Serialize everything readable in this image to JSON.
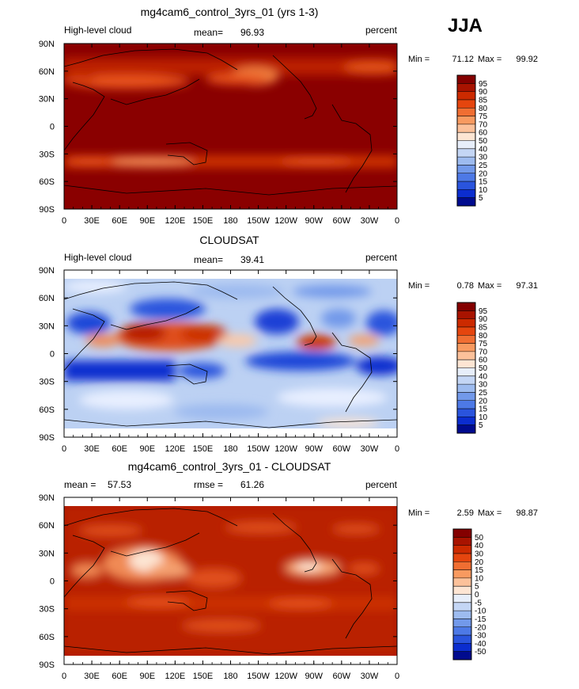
{
  "season": "JJA",
  "chart_data": [
    {
      "type": "heatmap",
      "title": "mg4cam6_control_3yrs_01 (yrs 1-3)",
      "left_label": "High-level cloud",
      "stat_label": "mean=",
      "stat_value": "96.93",
      "units": "percent",
      "min_label": "Min =",
      "min_value": "71.12",
      "max_label": "Max =",
      "max_value": "99.92",
      "legend_levels": [
        "95",
        "90",
        "85",
        "80",
        "75",
        "70",
        "60",
        "50",
        "40",
        "30",
        "25",
        "20",
        "15",
        "10",
        "5"
      ],
      "xlabels": [
        "0",
        "30E",
        "60E",
        "90E",
        "120E",
        "150E",
        "180",
        "150W",
        "120W",
        "90W",
        "60W",
        "30W",
        "0"
      ],
      "ylabels": [
        "90N",
        "60N",
        "30N",
        "0",
        "30S",
        "60S",
        "90S"
      ]
    },
    {
      "type": "heatmap",
      "title": "CLOUDSAT",
      "left_label": "High-level cloud",
      "stat_label": "mean=",
      "stat_value": "39.41",
      "units": "percent",
      "min_label": "Min =",
      "min_value": "0.78",
      "max_label": "Max =",
      "max_value": "97.31",
      "legend_levels": [
        "95",
        "90",
        "85",
        "80",
        "75",
        "70",
        "60",
        "50",
        "40",
        "30",
        "25",
        "20",
        "15",
        "10",
        "5"
      ],
      "xlabels": [
        "0",
        "30E",
        "60E",
        "90E",
        "120E",
        "150E",
        "180",
        "150W",
        "120W",
        "90W",
        "60W",
        "30W",
        "0"
      ],
      "ylabels": [
        "90N",
        "60N",
        "30N",
        "0",
        "30S",
        "60S",
        "90S"
      ]
    },
    {
      "type": "heatmap",
      "title": "mg4cam6_control_3yrs_01 - CLOUDSAT",
      "left_label": "mean =",
      "left_value": "57.53",
      "stat_label": "rmse =",
      "stat_value": "61.26",
      "units": "percent",
      "min_label": "Min =",
      "min_value": "2.59",
      "max_label": "Max =",
      "max_value": "98.87",
      "legend_levels": [
        "50",
        "40",
        "30",
        "20",
        "15",
        "10",
        "5",
        "0",
        "-5",
        "-10",
        "-15",
        "-20",
        "-30",
        "-40",
        "-50"
      ],
      "xlabels": [
        "0",
        "30E",
        "60E",
        "90E",
        "120E",
        "150E",
        "180",
        "150W",
        "120W",
        "90W",
        "60W",
        "30W",
        "0"
      ],
      "ylabels": [
        "90N",
        "60N",
        "30N",
        "0",
        "30S",
        "60S",
        "90S"
      ]
    }
  ],
  "colors": {
    "scale": [
      "#840000",
      "#a81300",
      "#cc2a00",
      "#e5450e",
      "#f06e32",
      "#f89a60",
      "#fcc19a",
      "#fde5d3",
      "#e7eefa",
      "#c4d6f5",
      "#9dbbef",
      "#7299ea",
      "#4d79e6",
      "#2a54dd",
      "#0b2dcf",
      "#000b8e"
    ]
  }
}
